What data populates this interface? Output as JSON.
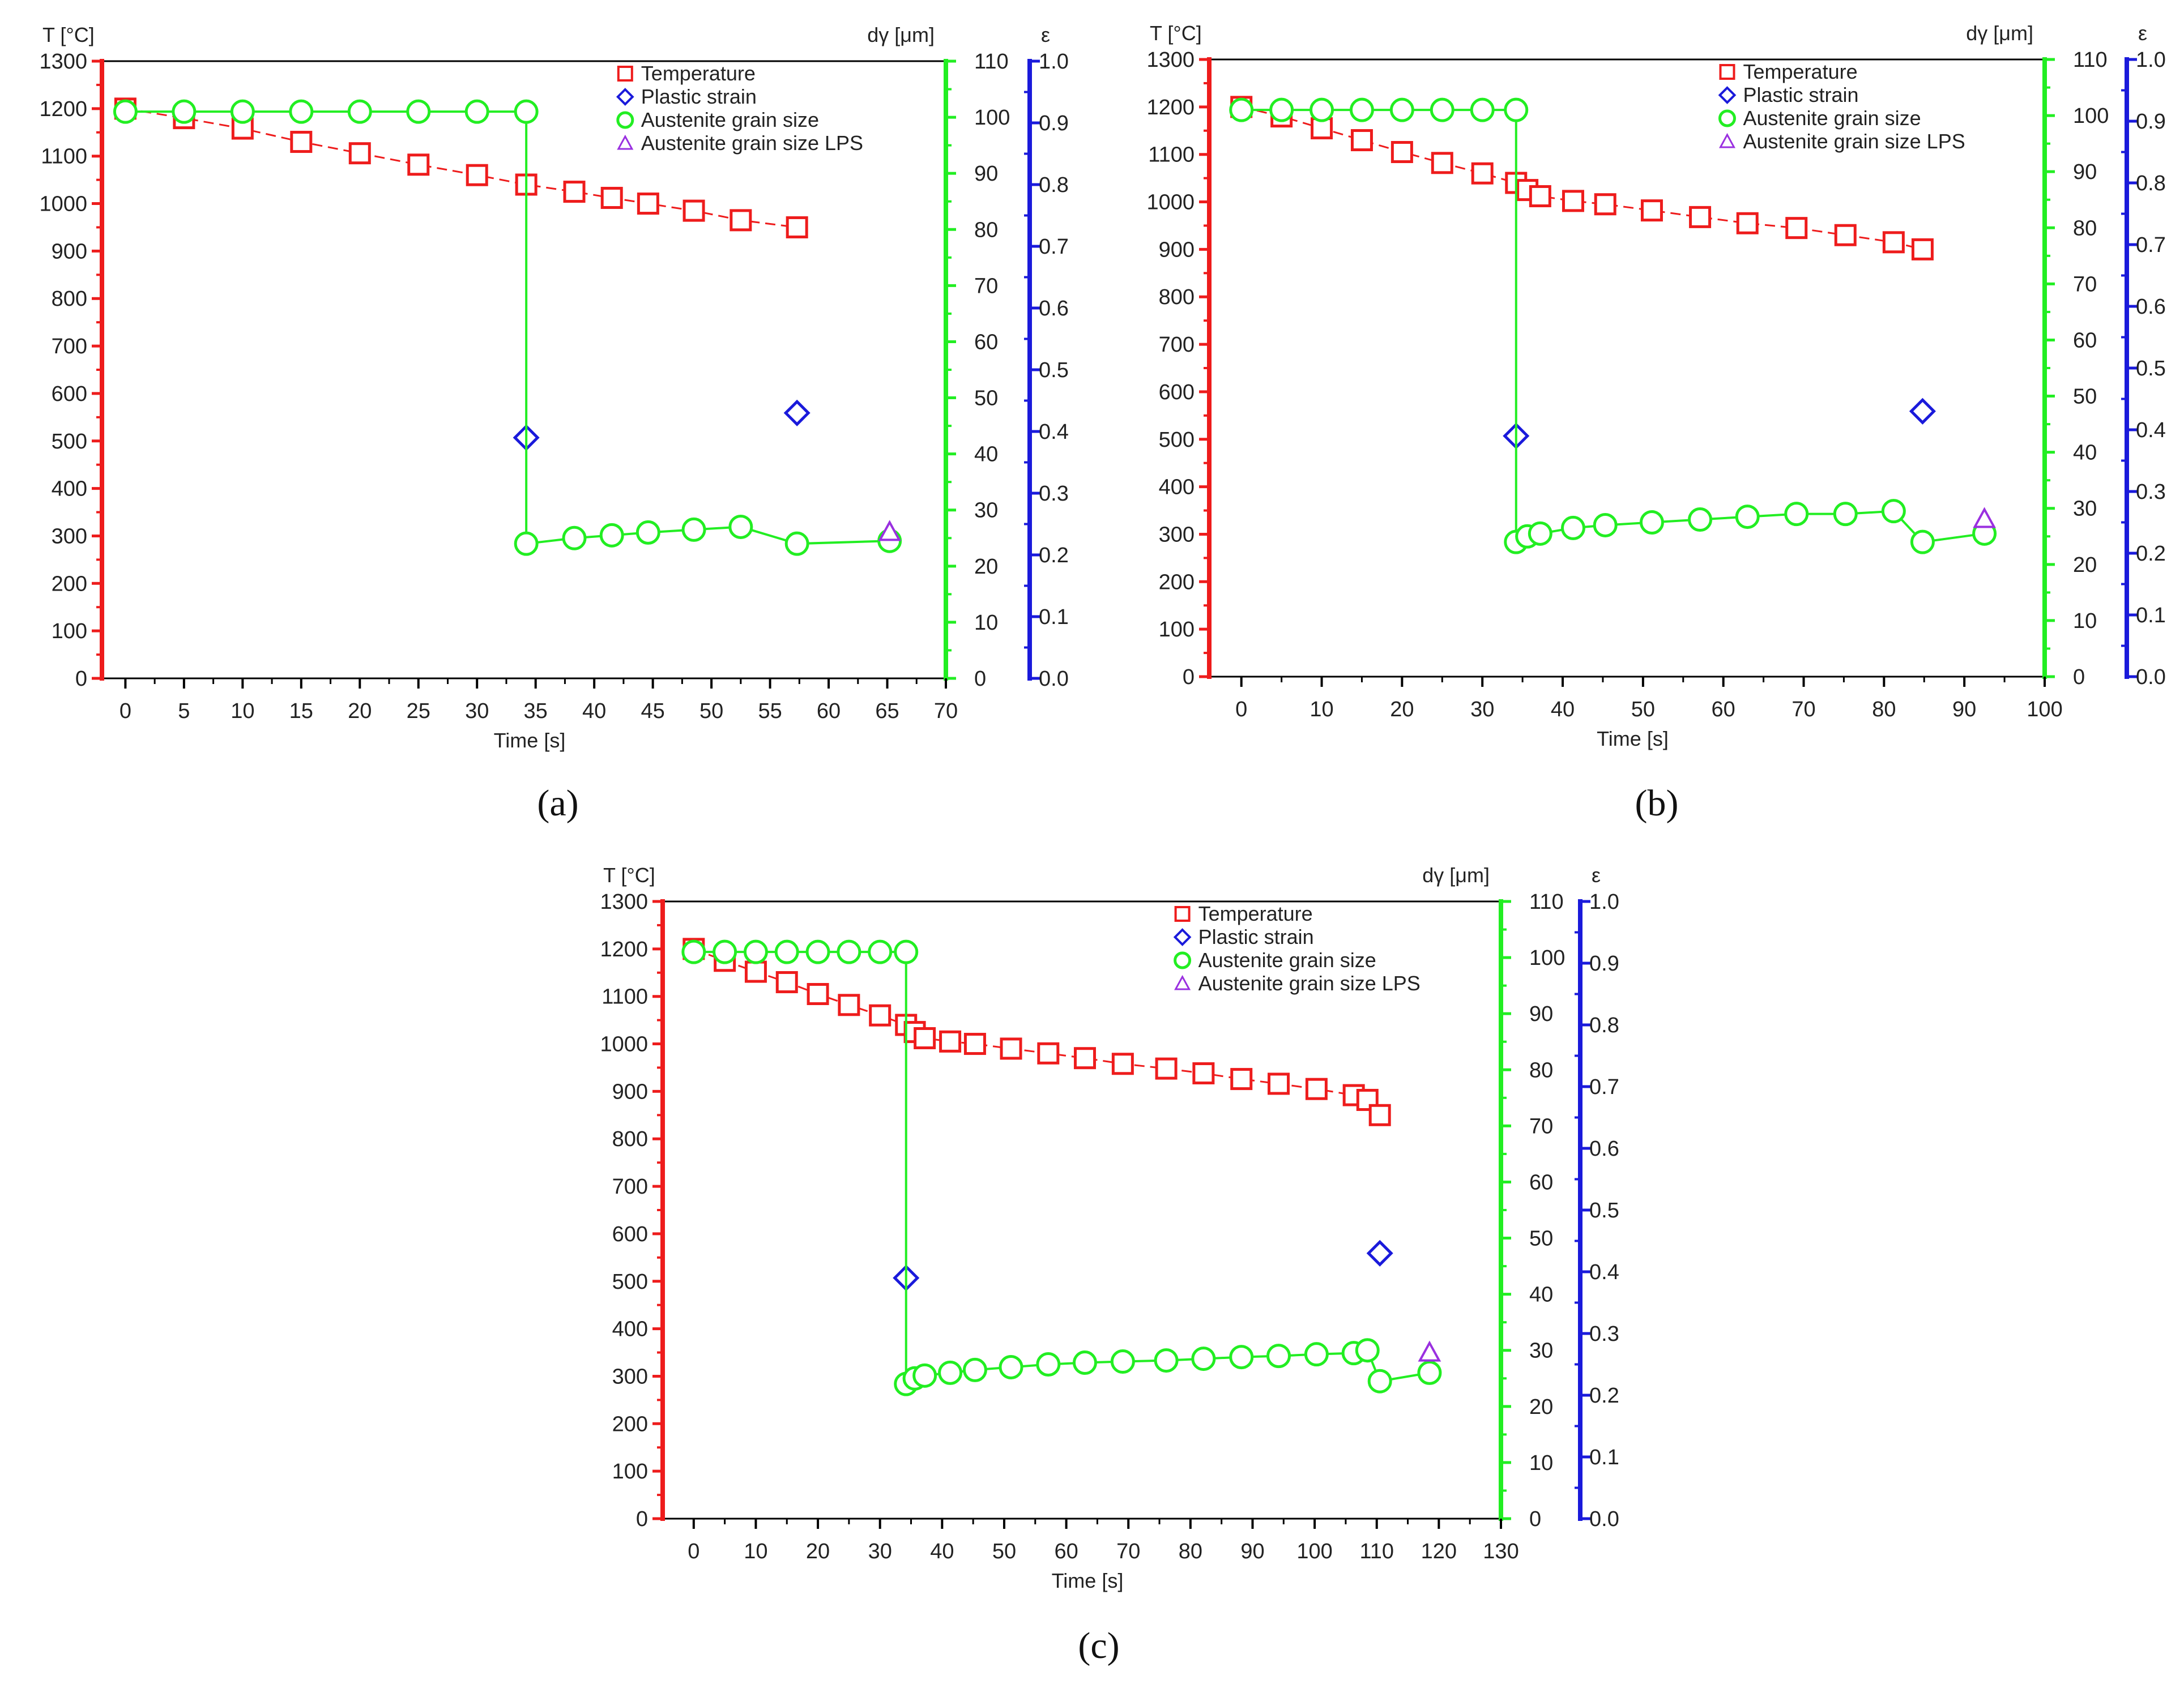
{
  "colors": {
    "temperature": "#ee1c1c",
    "strain": "#1a1adb",
    "grain": "#22ee22",
    "lps": "#9a30e0",
    "frame": "#000000",
    "text": "#222222"
  },
  "legend": [
    "Temperature",
    "Plastic strain",
    "Austenite grain size",
    "Austenite grain size LPS"
  ],
  "axis_titles": {
    "x": "Time [s]",
    "y_left": "T [°C]",
    "y_grain": "dγ [μm]",
    "y_strain": "ε"
  },
  "chart_data": [
    {
      "type": "scatter",
      "panel_label": "(a)",
      "title": "",
      "xlabel": "Time [s]",
      "ylabel": "T [°C]",
      "xlim": [
        -2,
        70
      ],
      "xticks": [
        0,
        5,
        10,
        15,
        20,
        25,
        30,
        35,
        40,
        45,
        50,
        55,
        60,
        65,
        70
      ],
      "ylim": [
        0,
        1300
      ],
      "yticks": [
        0,
        100,
        200,
        300,
        400,
        500,
        600,
        700,
        800,
        900,
        1000,
        1100,
        1200,
        1300
      ],
      "y2lim": [
        0,
        110
      ],
      "y2ticks": [
        0,
        10,
        20,
        30,
        40,
        50,
        60,
        70,
        80,
        90,
        100,
        110
      ],
      "y3lim": [
        0,
        1.0
      ],
      "y3ticks": [
        "0.0",
        "0.1",
        "0.2",
        "0.3",
        "0.4",
        "0.5",
        "0.6",
        "0.7",
        "0.8",
        "0.9",
        "1.0"
      ],
      "series": [
        {
          "name": "Temperature",
          "axis": "T",
          "marker": "square",
          "line": "dash",
          "x": [
            0,
            5,
            10,
            15,
            20,
            25,
            30,
            34.2,
            38.3,
            41.5,
            44.6,
            48.5,
            52.5,
            57.3
          ],
          "y": [
            1200,
            1180,
            1158,
            1130,
            1106,
            1082,
            1060,
            1040,
            1025,
            1012,
            1000,
            985,
            965,
            950
          ]
        },
        {
          "name": "Plastic strain",
          "axis": "strain",
          "marker": "diamond",
          "line": "none",
          "x": [
            34.2,
            57.3
          ],
          "y": [
            0.39,
            0.43
          ]
        },
        {
          "name": "Austenite grain size",
          "axis": "grain",
          "marker": "circle",
          "line": "solid",
          "x": [
            0,
            5,
            10,
            15,
            20,
            25,
            30,
            34.2,
            34.2,
            38.3,
            41.5,
            44.6,
            48.5,
            52.5,
            57.3,
            65.2
          ],
          "y": [
            101,
            101,
            101,
            101,
            101,
            101,
            101,
            101,
            24,
            25,
            25.5,
            26,
            26.5,
            27,
            24,
            24.5
          ]
        },
        {
          "name": "Austenite grain size LPS",
          "axis": "grain",
          "marker": "triangle",
          "line": "none",
          "x": [
            65.2
          ],
          "y": [
            26
          ]
        }
      ]
    },
    {
      "type": "scatter",
      "panel_label": "(b)",
      "title": "",
      "xlabel": "Time [s]",
      "ylabel": "T [°C]",
      "xlim": [
        -4,
        100
      ],
      "xticks": [
        0,
        10,
        20,
        30,
        40,
        50,
        60,
        70,
        80,
        90,
        100
      ],
      "ylim": [
        0,
        1300
      ],
      "yticks": [
        0,
        100,
        200,
        300,
        400,
        500,
        600,
        700,
        800,
        900,
        1000,
        1100,
        1200,
        1300
      ],
      "y2lim": [
        0,
        110
      ],
      "y2ticks": [
        0,
        10,
        20,
        30,
        40,
        50,
        60,
        70,
        80,
        90,
        100,
        110
      ],
      "y3lim": [
        0,
        1.0
      ],
      "y3ticks": [
        "0.0",
        "0.1",
        "0.2",
        "0.3",
        "0.4",
        "0.5",
        "0.6",
        "0.7",
        "0.8",
        "0.9",
        "1.0"
      ],
      "series": [
        {
          "name": "Temperature",
          "axis": "T",
          "marker": "square",
          "line": "dash",
          "x": [
            0,
            5,
            10,
            15,
            20,
            25,
            30,
            34.2,
            35.6,
            37.2,
            41.3,
            45.3,
            51.1,
            57.1,
            63,
            69.1,
            75.2,
            81.2,
            84.8
          ],
          "y": [
            1200,
            1180,
            1155,
            1130,
            1105,
            1082,
            1060,
            1040,
            1025,
            1012,
            1002,
            995,
            982,
            968,
            955,
            945,
            930,
            915,
            900
          ]
        },
        {
          "name": "Plastic strain",
          "axis": "strain",
          "marker": "diamond",
          "line": "none",
          "x": [
            34.2,
            84.8
          ],
          "y": [
            0.39,
            0.43
          ]
        },
        {
          "name": "Austenite grain size",
          "axis": "grain",
          "marker": "circle",
          "line": "solid",
          "x": [
            0,
            5,
            10,
            15,
            20,
            25,
            30,
            34.2,
            34.2,
            35.6,
            37.2,
            41.3,
            45.3,
            51.1,
            57.1,
            63,
            69.1,
            75.2,
            81.2,
            84.8,
            92.5
          ],
          "y": [
            101,
            101,
            101,
            101,
            101,
            101,
            101,
            101,
            24,
            25,
            25.5,
            26.5,
            27,
            27.5,
            28,
            28.5,
            29,
            29,
            29.5,
            24,
            25.5
          ]
        },
        {
          "name": "Austenite grain size LPS",
          "axis": "grain",
          "marker": "triangle",
          "line": "none",
          "x": [
            92.5
          ],
          "y": [
            28
          ]
        }
      ]
    },
    {
      "type": "scatter",
      "panel_label": "(c)",
      "title": "",
      "xlabel": "Time [s]",
      "ylabel": "T [°C]",
      "xlim": [
        -5,
        130
      ],
      "xticks": [
        0,
        10,
        20,
        30,
        40,
        50,
        60,
        70,
        80,
        90,
        100,
        110,
        120,
        130
      ],
      "ylim": [
        0,
        1300
      ],
      "yticks": [
        0,
        100,
        200,
        300,
        400,
        500,
        600,
        700,
        800,
        900,
        1000,
        1100,
        1200,
        1300
      ],
      "y2lim": [
        0,
        110
      ],
      "y2ticks": [
        0,
        10,
        20,
        30,
        40,
        50,
        60,
        70,
        80,
        90,
        100,
        110
      ],
      "y3lim": [
        0,
        1.0
      ],
      "y3ticks": [
        "0.0",
        "0.1",
        "0.2",
        "0.3",
        "0.4",
        "0.5",
        "0.6",
        "0.7",
        "0.8",
        "0.9",
        "1.0"
      ],
      "series": [
        {
          "name": "Temperature",
          "axis": "T",
          "marker": "square",
          "line": "dash",
          "x": [
            0,
            5,
            10,
            15,
            20,
            25,
            30,
            34.2,
            35.6,
            37.2,
            41.3,
            45.3,
            51.1,
            57.1,
            63,
            69.1,
            76.1,
            82.1,
            88.2,
            94.2,
            100.3,
            106.3,
            108.5,
            110.5
          ],
          "y": [
            1200,
            1175,
            1152,
            1130,
            1105,
            1082,
            1060,
            1040,
            1025,
            1012,
            1005,
            1000,
            990,
            980,
            970,
            958,
            948,
            938,
            926,
            916,
            905,
            892,
            882,
            850
          ]
        },
        {
          "name": "Plastic strain",
          "axis": "strain",
          "marker": "diamond",
          "line": "none",
          "x": [
            34.2,
            110.5
          ],
          "y": [
            0.39,
            0.43
          ]
        },
        {
          "name": "Austenite grain size",
          "axis": "grain",
          "marker": "circle",
          "line": "solid",
          "x": [
            0,
            5,
            10,
            15,
            20,
            25,
            30,
            34.2,
            34.2,
            35.6,
            37.2,
            41.3,
            45.3,
            51.1,
            57.1,
            63,
            69.1,
            76.1,
            82.1,
            88.2,
            94.2,
            100.3,
            106.3,
            108.5,
            110.5,
            118.5
          ],
          "y": [
            101,
            101,
            101,
            101,
            101,
            101,
            101,
            101,
            24,
            25,
            25.5,
            26,
            26.5,
            27,
            27.5,
            27.8,
            28,
            28.2,
            28.5,
            28.8,
            29,
            29.3,
            29.5,
            30,
            24.5,
            26
          ]
        },
        {
          "name": "Austenite grain size LPS",
          "axis": "grain",
          "marker": "triangle",
          "line": "none",
          "x": [
            118.5
          ],
          "y": [
            29.5
          ]
        }
      ]
    }
  ]
}
